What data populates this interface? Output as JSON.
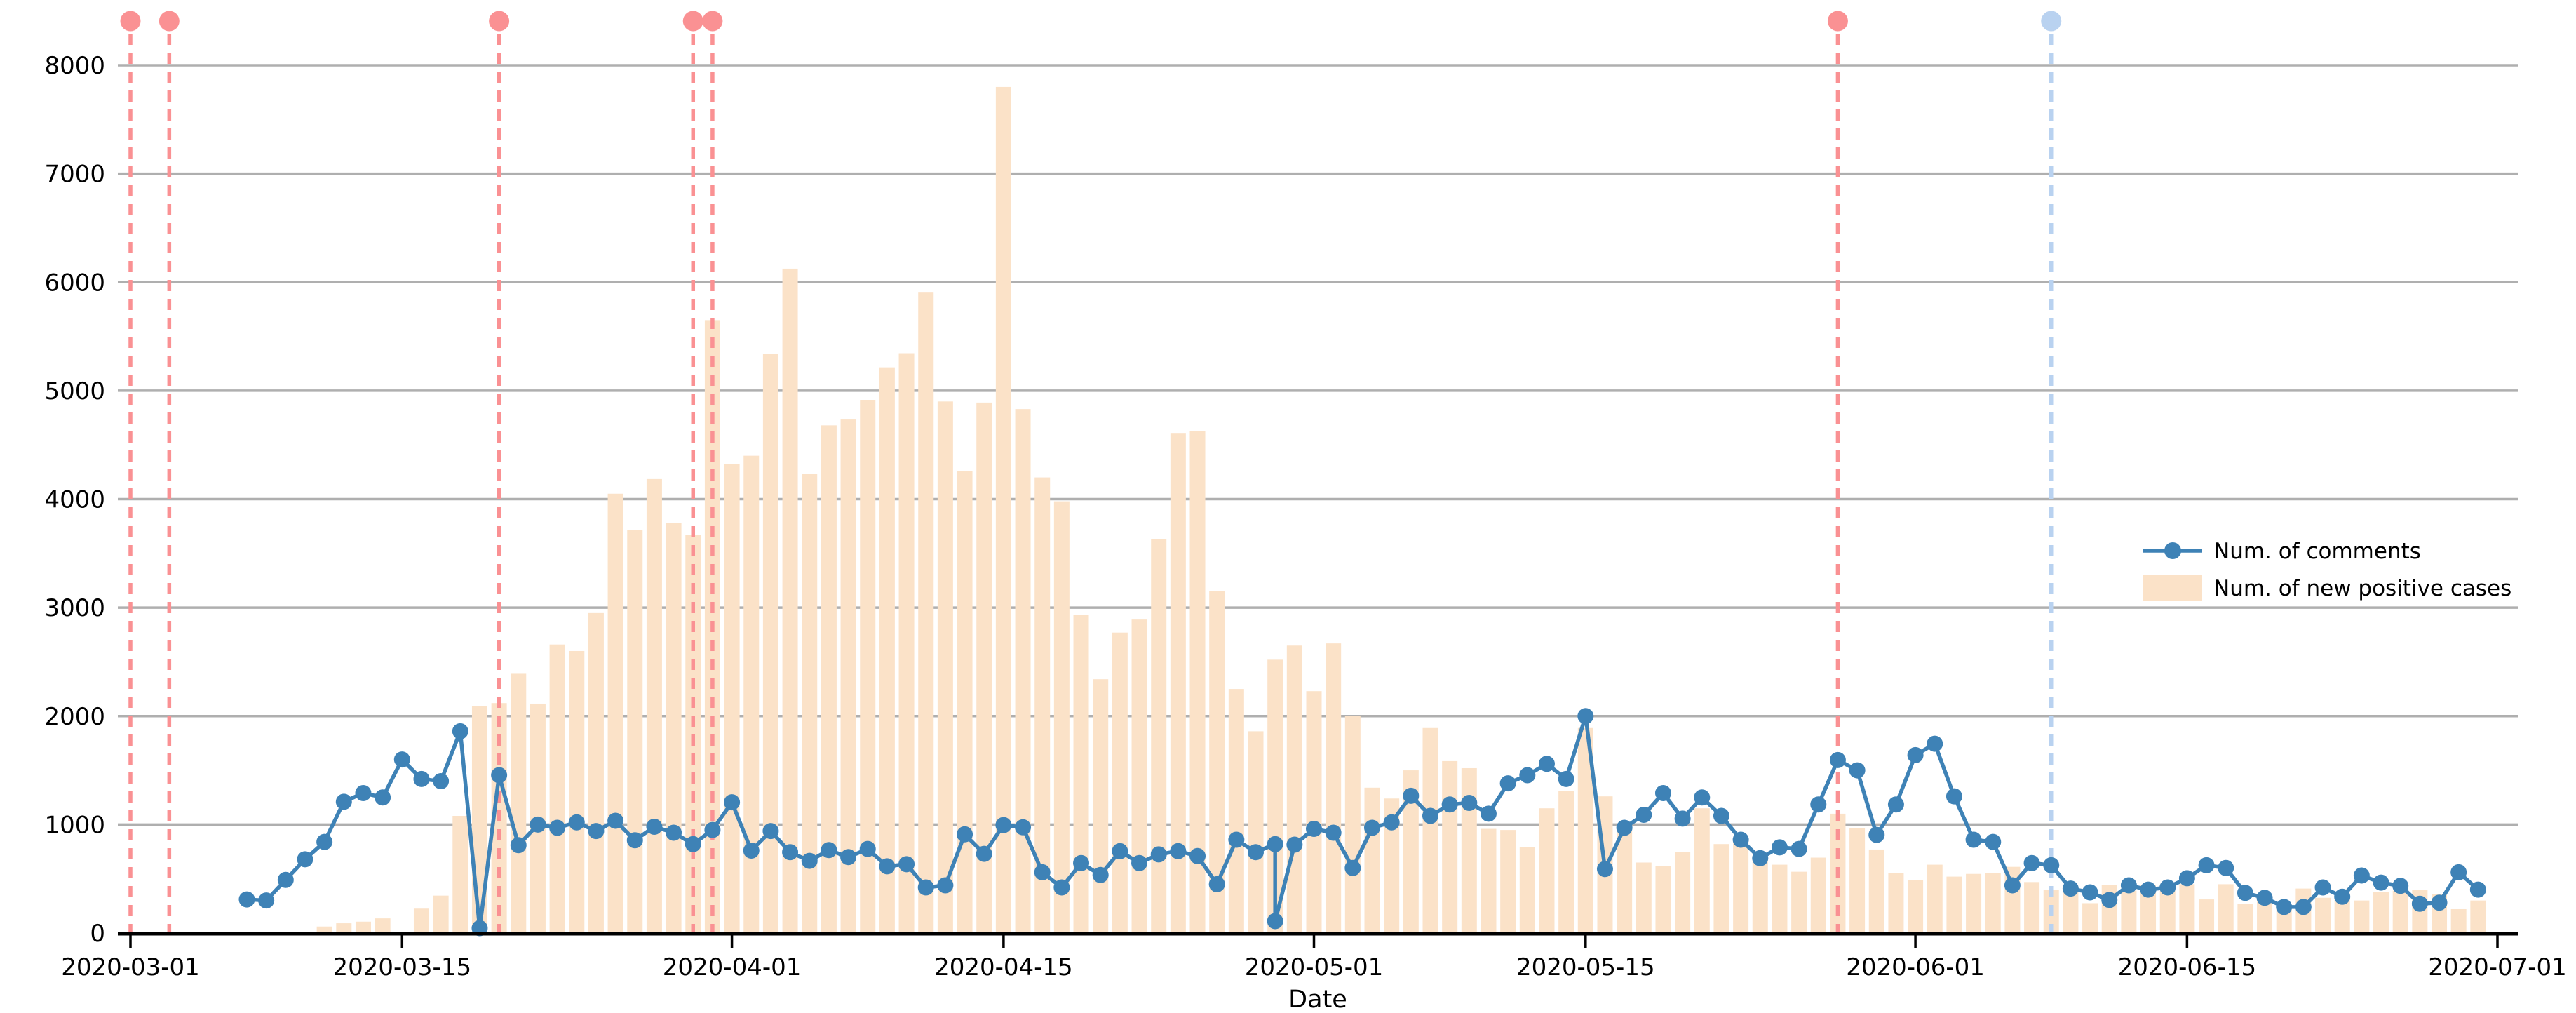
{
  "chart_data": {
    "type": "line-bar-combo",
    "title": "",
    "xlabel": "Date",
    "ylabel": "",
    "ylim": [
      0,
      8400
    ],
    "yticks": [
      0,
      1000,
      2000,
      3000,
      4000,
      5000,
      6000,
      7000,
      8000
    ],
    "xtick_labels": [
      "2020-03-01",
      "2020-03-15",
      "2020-04-01",
      "2020-04-15",
      "2020-05-01",
      "2020-05-15",
      "2020-06-01",
      "2020-06-15",
      "2020-07-01"
    ],
    "x_range": [
      "2020-03-01",
      "2020-07-01"
    ],
    "grid": "horizontal",
    "colors": {
      "comments_line": "#3E82B6",
      "cases_bar": "#FBE2C8",
      "red_event": "#FA9193",
      "blue_event": "#B9D2F0",
      "gridline": "#AFAFAF",
      "axis": "#000000"
    },
    "legend": {
      "position": "center-right",
      "entries": [
        {
          "label": "Num. of comments",
          "type": "line-marker",
          "color": "#3E82B6"
        },
        {
          "label": "Num. of new positive cases",
          "type": "bar",
          "color": "#FBE2C8"
        }
      ]
    },
    "events": {
      "red_dashed_dates": [
        "2020-03-01",
        "2020-03-03",
        "2020-03-20",
        "2020-03-30",
        "2020-03-31",
        "2020-05-28"
      ],
      "blue_dashed_dates": [
        "2020-06-08"
      ]
    },
    "series": [
      {
        "name": "Num. of comments",
        "type": "line",
        "points": [
          [
            "2020-03-07",
            310
          ],
          [
            "2020-03-08",
            300
          ],
          [
            "2020-03-09",
            490
          ],
          [
            "2020-03-10",
            680
          ],
          [
            "2020-03-11",
            840
          ],
          [
            "2020-03-12",
            1210
          ],
          [
            "2020-03-13",
            1290
          ],
          [
            "2020-03-14",
            1250
          ],
          [
            "2020-03-15",
            1600
          ],
          [
            "2020-03-16",
            1420
          ],
          [
            "2020-03-17",
            1400
          ],
          [
            "2020-03-18",
            1860
          ],
          [
            "2020-03-19",
            45
          ],
          [
            "2020-03-20",
            1455
          ],
          [
            "2020-03-21",
            810
          ],
          [
            "2020-03-22",
            1000
          ],
          [
            "2020-03-23",
            970
          ],
          [
            "2020-03-24",
            1020
          ],
          [
            "2020-03-25",
            940
          ],
          [
            "2020-03-26",
            1035
          ],
          [
            "2020-03-27",
            855
          ],
          [
            "2020-03-28",
            980
          ],
          [
            "2020-03-29",
            925
          ],
          [
            "2020-03-30",
            820
          ],
          [
            "2020-03-31",
            950
          ],
          [
            "2020-04-01",
            1205
          ],
          [
            "2020-04-02",
            760
          ],
          [
            "2020-04-03",
            940
          ],
          [
            "2020-04-04",
            745
          ],
          [
            "2020-04-05",
            665
          ],
          [
            "2020-04-06",
            765
          ],
          [
            "2020-04-07",
            700
          ],
          [
            "2020-04-08",
            775
          ],
          [
            "2020-04-09",
            615
          ],
          [
            "2020-04-10",
            635
          ],
          [
            "2020-04-11",
            420
          ],
          [
            "2020-04-12",
            440
          ],
          [
            "2020-04-13",
            910
          ],
          [
            "2020-04-14",
            730
          ],
          [
            "2020-04-15",
            995
          ],
          [
            "2020-04-16",
            975
          ],
          [
            "2020-04-17",
            560
          ],
          [
            "2020-04-18",
            420
          ],
          [
            "2020-04-19",
            645
          ],
          [
            "2020-04-20",
            535
          ],
          [
            "2020-04-21",
            755
          ],
          [
            "2020-04-22",
            645
          ],
          [
            "2020-04-23",
            725
          ],
          [
            "2020-04-24",
            755
          ],
          [
            "2020-04-25",
            710
          ],
          [
            "2020-04-26",
            450
          ],
          [
            "2020-04-27",
            860
          ],
          [
            "2020-04-28",
            745
          ],
          [
            "2020-04-29",
            820
          ],
          [
            "2020-04-29",
            110
          ],
          [
            "2020-04-30",
            815
          ],
          [
            "2020-05-01",
            960
          ],
          [
            "2020-05-02",
            925
          ],
          [
            "2020-05-03",
            600
          ],
          [
            "2020-05-04",
            970
          ],
          [
            "2020-05-05",
            1020
          ],
          [
            "2020-05-06",
            1265
          ],
          [
            "2020-05-07",
            1080
          ],
          [
            "2020-05-08",
            1185
          ],
          [
            "2020-05-09",
            1200
          ],
          [
            "2020-05-10",
            1100
          ],
          [
            "2020-05-11",
            1380
          ],
          [
            "2020-05-12",
            1455
          ],
          [
            "2020-05-13",
            1560
          ],
          [
            "2020-05-14",
            1420
          ],
          [
            "2020-05-15",
            2000
          ],
          [
            "2020-05-16",
            590
          ],
          [
            "2020-05-17",
            970
          ],
          [
            "2020-05-18",
            1090
          ],
          [
            "2020-05-19",
            1290
          ],
          [
            "2020-05-20",
            1055
          ],
          [
            "2020-05-21",
            1250
          ],
          [
            "2020-05-22",
            1080
          ],
          [
            "2020-05-23",
            860
          ],
          [
            "2020-05-24",
            690
          ],
          [
            "2020-05-25",
            790
          ],
          [
            "2020-05-26",
            775
          ],
          [
            "2020-05-27",
            1185
          ],
          [
            "2020-05-28",
            1595
          ],
          [
            "2020-05-29",
            1500
          ],
          [
            "2020-05-30",
            905
          ],
          [
            "2020-05-31",
            1185
          ],
          [
            "2020-06-01",
            1640
          ],
          [
            "2020-06-02",
            1745
          ],
          [
            "2020-06-03",
            1260
          ],
          [
            "2020-06-04",
            860
          ],
          [
            "2020-06-05",
            840
          ],
          [
            "2020-06-06",
            440
          ],
          [
            "2020-06-07",
            645
          ],
          [
            "2020-06-08",
            625
          ],
          [
            "2020-06-09",
            410
          ],
          [
            "2020-06-10",
            375
          ],
          [
            "2020-06-11",
            305
          ],
          [
            "2020-06-12",
            440
          ],
          [
            "2020-06-13",
            400
          ],
          [
            "2020-06-14",
            420
          ],
          [
            "2020-06-15",
            505
          ],
          [
            "2020-06-16",
            625
          ],
          [
            "2020-06-17",
            600
          ],
          [
            "2020-06-18",
            370
          ],
          [
            "2020-06-19",
            325
          ],
          [
            "2020-06-20",
            240
          ],
          [
            "2020-06-21",
            240
          ],
          [
            "2020-06-22",
            420
          ],
          [
            "2020-06-23",
            335
          ],
          [
            "2020-06-24",
            530
          ],
          [
            "2020-06-25",
            465
          ],
          [
            "2020-06-26",
            435
          ],
          [
            "2020-06-27",
            270
          ],
          [
            "2020-06-28",
            280
          ],
          [
            "2020-06-29",
            560
          ],
          [
            "2020-06-30",
            400
          ]
        ]
      },
      {
        "name": "Num. of new positive cases",
        "type": "bar",
        "points": [
          [
            "2020-03-11",
            60
          ],
          [
            "2020-03-12",
            90
          ],
          [
            "2020-03-13",
            105
          ],
          [
            "2020-03-14",
            135
          ],
          [
            "2020-03-16",
            225
          ],
          [
            "2020-03-17",
            345
          ],
          [
            "2020-03-18",
            1080
          ],
          [
            "2020-03-19",
            2090
          ],
          [
            "2020-03-20",
            2120
          ],
          [
            "2020-03-21",
            2390
          ],
          [
            "2020-03-22",
            2115
          ],
          [
            "2020-03-23",
            2660
          ],
          [
            "2020-03-24",
            2600
          ],
          [
            "2020-03-25",
            2950
          ],
          [
            "2020-03-26",
            4050
          ],
          [
            "2020-03-27",
            3715
          ],
          [
            "2020-03-28",
            4185
          ],
          [
            "2020-03-29",
            3780
          ],
          [
            "2020-03-30",
            3670
          ],
          [
            "2020-03-31",
            5650
          ],
          [
            "2020-04-01",
            4320
          ],
          [
            "2020-04-02",
            4400
          ],
          [
            "2020-04-03",
            5340
          ],
          [
            "2020-04-04",
            6125
          ],
          [
            "2020-04-05",
            4230
          ],
          [
            "2020-04-06",
            4680
          ],
          [
            "2020-04-07",
            4740
          ],
          [
            "2020-04-08",
            4915
          ],
          [
            "2020-04-09",
            5215
          ],
          [
            "2020-04-10",
            5345
          ],
          [
            "2020-04-11",
            5910
          ],
          [
            "2020-04-12",
            4900
          ],
          [
            "2020-04-13",
            4260
          ],
          [
            "2020-04-14",
            4890
          ],
          [
            "2020-04-15",
            7800
          ],
          [
            "2020-04-16",
            4830
          ],
          [
            "2020-04-17",
            4200
          ],
          [
            "2020-04-18",
            3980
          ],
          [
            "2020-04-19",
            2930
          ],
          [
            "2020-04-20",
            2340
          ],
          [
            "2020-04-21",
            2770
          ],
          [
            "2020-04-22",
            2890
          ],
          [
            "2020-04-23",
            3630
          ],
          [
            "2020-04-24",
            4610
          ],
          [
            "2020-04-25",
            4630
          ],
          [
            "2020-04-26",
            3150
          ],
          [
            "2020-04-27",
            2250
          ],
          [
            "2020-04-28",
            1860
          ],
          [
            "2020-04-29",
            2520
          ],
          [
            "2020-04-30",
            2650
          ],
          [
            "2020-05-01",
            2230
          ],
          [
            "2020-05-02",
            2670
          ],
          [
            "2020-05-03",
            2000
          ],
          [
            "2020-05-04",
            1340
          ],
          [
            "2020-05-05",
            1240
          ],
          [
            "2020-05-06",
            1500
          ],
          [
            "2020-05-07",
            1890
          ],
          [
            "2020-05-08",
            1585
          ],
          [
            "2020-05-09",
            1520
          ],
          [
            "2020-05-10",
            960
          ],
          [
            "2020-05-11",
            950
          ],
          [
            "2020-05-12",
            790
          ],
          [
            "2020-05-13",
            1150
          ],
          [
            "2020-05-14",
            1310
          ],
          [
            "2020-05-15",
            1890
          ],
          [
            "2020-05-16",
            1260
          ],
          [
            "2020-05-17",
            955
          ],
          [
            "2020-05-18",
            650
          ],
          [
            "2020-05-19",
            620
          ],
          [
            "2020-05-20",
            750
          ],
          [
            "2020-05-21",
            1150
          ],
          [
            "2020-05-22",
            820
          ],
          [
            "2020-05-23",
            870
          ],
          [
            "2020-05-24",
            680
          ],
          [
            "2020-05-25",
            630
          ],
          [
            "2020-05-26",
            565
          ],
          [
            "2020-05-27",
            695
          ],
          [
            "2020-05-28",
            1100
          ],
          [
            "2020-05-29",
            965
          ],
          [
            "2020-05-30",
            770
          ],
          [
            "2020-05-31",
            550
          ],
          [
            "2020-06-01",
            485
          ],
          [
            "2020-06-02",
            630
          ],
          [
            "2020-06-03",
            520
          ],
          [
            "2020-06-04",
            545
          ],
          [
            "2020-06-05",
            555
          ],
          [
            "2020-06-06",
            610
          ],
          [
            "2020-06-07",
            470
          ],
          [
            "2020-06-08",
            395
          ],
          [
            "2020-06-09",
            380
          ],
          [
            "2020-06-10",
            275
          ],
          [
            "2020-06-11",
            440
          ],
          [
            "2020-06-12",
            390
          ],
          [
            "2020-06-13",
            440
          ],
          [
            "2020-06-14",
            390
          ],
          [
            "2020-06-15",
            450
          ],
          [
            "2020-06-16",
            310
          ],
          [
            "2020-06-17",
            450
          ],
          [
            "2020-06-18",
            265
          ],
          [
            "2020-06-19",
            355
          ],
          [
            "2020-06-20",
            250
          ],
          [
            "2020-06-21",
            410
          ],
          [
            "2020-06-22",
            325
          ],
          [
            "2020-06-23",
            330
          ],
          [
            "2020-06-24",
            300
          ],
          [
            "2020-06-25",
            375
          ],
          [
            "2020-06-26",
            390
          ],
          [
            "2020-06-27",
            395
          ],
          [
            "2020-06-28",
            360
          ],
          [
            "2020-06-29",
            220
          ],
          [
            "2020-06-30",
            300
          ]
        ]
      }
    ]
  }
}
